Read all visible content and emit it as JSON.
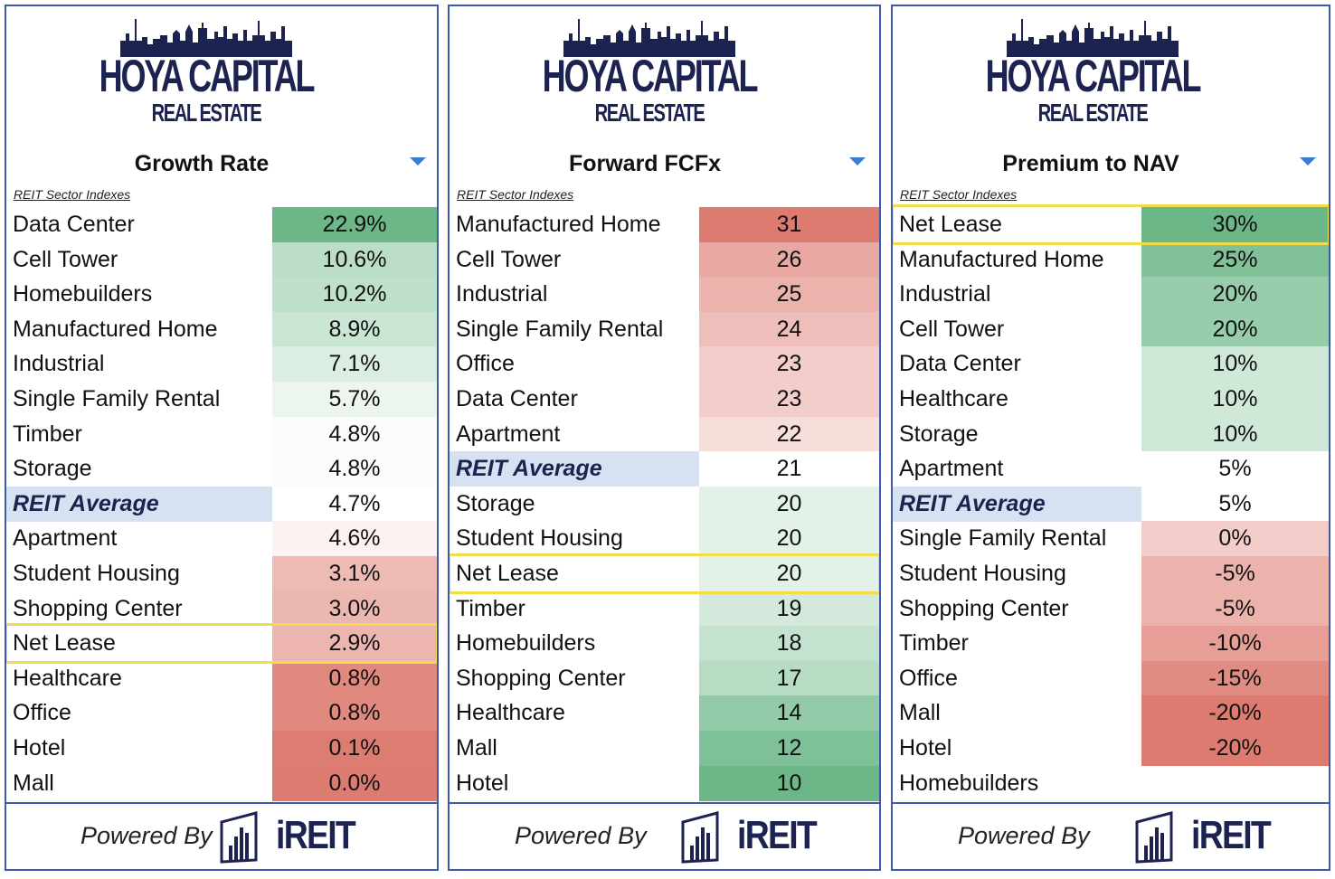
{
  "brand": {
    "title": "HOYA CAPITAL",
    "subtitle": "REAL ESTATE",
    "powered_by": "Powered By",
    "ireit": "iREIT"
  },
  "sector_label": "REIT Sector Indexes",
  "colors": {
    "green_strong": "#6bb787",
    "green_light": "#d7ede0",
    "red_strong": "#dd7b70",
    "red_light": "#f6d9d8",
    "average_band": "#d6e2f1",
    "highlight": "#f3dc4a",
    "border": "#3f5aa6",
    "brand_navy": "#1c2350"
  },
  "panels": [
    {
      "metric": "Growth Rate",
      "rows": [
        {
          "name": "Data Center",
          "value": "22.9%"
        },
        {
          "name": "Cell Tower",
          "value": "10.6%"
        },
        {
          "name": "Homebuilders",
          "value": "10.2%"
        },
        {
          "name": "Manufactured Home",
          "value": "8.9%"
        },
        {
          "name": "Industrial",
          "value": "7.1%"
        },
        {
          "name": "Single Family Rental",
          "value": "5.7%"
        },
        {
          "name": "Timber",
          "value": "4.8%"
        },
        {
          "name": "Storage",
          "value": "4.8%"
        },
        {
          "name": "REIT Average",
          "value": "4.7%"
        },
        {
          "name": "Apartment",
          "value": "4.6%"
        },
        {
          "name": "Student Housing",
          "value": "3.1%"
        },
        {
          "name": "Shopping Center",
          "value": "3.0%"
        },
        {
          "name": "Net Lease",
          "value": "2.9%"
        },
        {
          "name": "Healthcare",
          "value": "0.8%"
        },
        {
          "name": "Office",
          "value": "0.8%"
        },
        {
          "name": "Hotel",
          "value": "0.1%"
        },
        {
          "name": "Mall",
          "value": "0.0%"
        }
      ]
    },
    {
      "metric": "Forward FCFx",
      "rows": [
        {
          "name": "Manufactured Home",
          "value": "31"
        },
        {
          "name": "Cell Tower",
          "value": "26"
        },
        {
          "name": "Industrial",
          "value": "25"
        },
        {
          "name": "Single Family Rental",
          "value": "24"
        },
        {
          "name": "Office",
          "value": "23"
        },
        {
          "name": "Data Center",
          "value": "23"
        },
        {
          "name": "Apartment",
          "value": "22"
        },
        {
          "name": "REIT Average",
          "value": "21"
        },
        {
          "name": "Storage",
          "value": "20"
        },
        {
          "name": "Student Housing",
          "value": "20"
        },
        {
          "name": "Net Lease",
          "value": "20"
        },
        {
          "name": "Timber",
          "value": "19"
        },
        {
          "name": "Homebuilders",
          "value": "18"
        },
        {
          "name": "Shopping Center",
          "value": "17"
        },
        {
          "name": "Healthcare",
          "value": "14"
        },
        {
          "name": "Mall",
          "value": "12"
        },
        {
          "name": "Hotel",
          "value": "10"
        }
      ]
    },
    {
      "metric": "Premium to NAV",
      "rows": [
        {
          "name": "Net Lease",
          "value": "30%"
        },
        {
          "name": "Manufactured Home",
          "value": "25%"
        },
        {
          "name": "Industrial",
          "value": "20%"
        },
        {
          "name": "Cell Tower",
          "value": "20%"
        },
        {
          "name": "Data Center",
          "value": "10%"
        },
        {
          "name": "Healthcare",
          "value": "10%"
        },
        {
          "name": "Storage",
          "value": "10%"
        },
        {
          "name": "Apartment",
          "value": "5%"
        },
        {
          "name": "REIT Average",
          "value": "5%"
        },
        {
          "name": "Single Family Rental",
          "value": "0%"
        },
        {
          "name": "Student Housing",
          "value": "-5%"
        },
        {
          "name": "Shopping Center",
          "value": "-5%"
        },
        {
          "name": "Timber",
          "value": "-10%"
        },
        {
          "name": "Office",
          "value": "-15%"
        },
        {
          "name": "Mall",
          "value": "-20%"
        },
        {
          "name": "Hotel",
          "value": "-20%"
        },
        {
          "name": "Homebuilders",
          "value": ""
        }
      ]
    }
  ],
  "chart_data": [
    {
      "type": "table",
      "title": "Growth Rate",
      "categories": [
        "Data Center",
        "Cell Tower",
        "Homebuilders",
        "Manufactured Home",
        "Industrial",
        "Single Family Rental",
        "Timber",
        "Storage",
        "REIT Average",
        "Apartment",
        "Student Housing",
        "Shopping Center",
        "Net Lease",
        "Healthcare",
        "Office",
        "Hotel",
        "Mall"
      ],
      "values": [
        22.9,
        10.6,
        10.2,
        8.9,
        7.1,
        5.7,
        4.8,
        4.8,
        4.7,
        4.6,
        3.1,
        3.0,
        2.9,
        0.8,
        0.8,
        0.1,
        0.0
      ],
      "unit": "%",
      "highlighted": "Net Lease"
    },
    {
      "type": "table",
      "title": "Forward FCFx",
      "categories": [
        "Manufactured Home",
        "Cell Tower",
        "Industrial",
        "Single Family Rental",
        "Office",
        "Data Center",
        "Apartment",
        "REIT Average",
        "Storage",
        "Student Housing",
        "Net Lease",
        "Timber",
        "Homebuilders",
        "Shopping Center",
        "Healthcare",
        "Mall",
        "Hotel"
      ],
      "values": [
        31,
        26,
        25,
        24,
        23,
        23,
        22,
        21,
        20,
        20,
        20,
        19,
        18,
        17,
        14,
        12,
        10
      ],
      "highlighted": "Net Lease"
    },
    {
      "type": "table",
      "title": "Premium to NAV",
      "categories": [
        "Net Lease",
        "Manufactured Home",
        "Industrial",
        "Cell Tower",
        "Data Center",
        "Healthcare",
        "Storage",
        "Apartment",
        "REIT Average",
        "Single Family Rental",
        "Student Housing",
        "Shopping Center",
        "Timber",
        "Office",
        "Mall",
        "Hotel",
        "Homebuilders"
      ],
      "values": [
        30,
        25,
        20,
        20,
        10,
        10,
        10,
        5,
        5,
        0,
        -5,
        -5,
        -10,
        -15,
        -20,
        -20,
        null
      ],
      "unit": "%",
      "highlighted": "Net Lease"
    }
  ]
}
